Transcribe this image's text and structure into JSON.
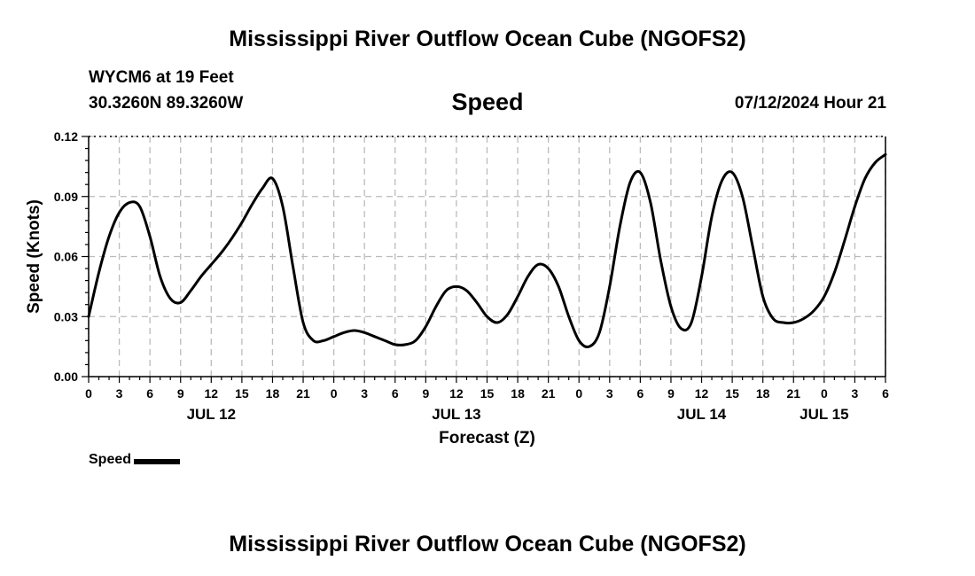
{
  "header": {
    "title": "Mississippi River Outflow Ocean Cube (NGOFS2)",
    "station": "WYCM6 at 19 Feet",
    "coords": "30.3260N  89.3260W",
    "subtitle": "Speed",
    "datetime": "07/12/2024 Hour 21"
  },
  "footer": {
    "title": "Mississippi River Outflow Ocean Cube (NGOFS2)"
  },
  "legend": {
    "label": "Speed"
  },
  "chart_data": {
    "type": "line",
    "title": "Speed",
    "xlabel": "Forecast (Z)",
    "ylabel": "Speed (Knots)",
    "xlim": [
      0,
      78
    ],
    "ylim": [
      0,
      0.12
    ],
    "y_ticks": [
      "0.00",
      "0.03",
      "0.06",
      "0.09",
      "0.12"
    ],
    "x_tick_labels": [
      "0",
      "3",
      "6",
      "9",
      "12",
      "15",
      "18",
      "21",
      "0",
      "3",
      "6",
      "9",
      "12",
      "15",
      "18",
      "21",
      "0",
      "3",
      "6",
      "9",
      "12",
      "15",
      "18",
      "21",
      "0",
      "3",
      "6"
    ],
    "day_labels": [
      {
        "label": "JUL 12",
        "hour": 12
      },
      {
        "label": "JUL 13",
        "hour": 36
      },
      {
        "label": "JUL 14",
        "hour": 60
      },
      {
        "label": "JUL 15",
        "hour": 72
      }
    ],
    "grid": true,
    "series": [
      {
        "name": "Speed",
        "color": "#000000",
        "x": [
          0,
          1,
          2,
          3,
          4,
          5,
          6,
          7,
          8,
          9,
          10,
          11,
          12,
          13,
          14,
          15,
          16,
          17,
          18,
          19,
          20,
          21,
          22,
          23,
          24,
          25,
          26,
          27,
          28,
          29,
          30,
          31,
          32,
          33,
          34,
          35,
          36,
          37,
          38,
          39,
          40,
          41,
          42,
          43,
          44,
          45,
          46,
          47,
          48,
          49,
          50,
          51,
          52,
          53,
          54,
          55,
          56,
          57,
          58,
          59,
          60,
          61,
          62,
          63,
          64,
          65,
          66,
          67,
          68,
          69,
          70,
          71,
          72,
          73,
          74,
          75,
          76,
          77,
          78
        ],
        "values": [
          0.03,
          0.052,
          0.07,
          0.082,
          0.087,
          0.085,
          0.07,
          0.05,
          0.039,
          0.037,
          0.043,
          0.05,
          0.056,
          0.062,
          0.069,
          0.077,
          0.086,
          0.094,
          0.099,
          0.085,
          0.055,
          0.027,
          0.018,
          0.018,
          0.02,
          0.022,
          0.023,
          0.022,
          0.02,
          0.018,
          0.016,
          0.016,
          0.018,
          0.025,
          0.035,
          0.043,
          0.045,
          0.043,
          0.037,
          0.03,
          0.027,
          0.031,
          0.04,
          0.05,
          0.056,
          0.054,
          0.045,
          0.03,
          0.018,
          0.015,
          0.022,
          0.045,
          0.075,
          0.097,
          0.102,
          0.087,
          0.058,
          0.035,
          0.024,
          0.027,
          0.05,
          0.08,
          0.098,
          0.102,
          0.09,
          0.065,
          0.04,
          0.029,
          0.027,
          0.027,
          0.029,
          0.033,
          0.04,
          0.052,
          0.068,
          0.085,
          0.099,
          0.107,
          0.111
        ]
      }
    ]
  }
}
